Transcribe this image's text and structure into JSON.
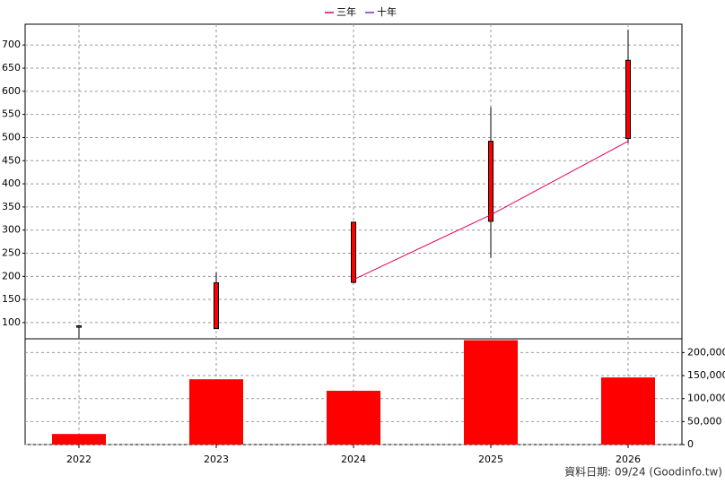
{
  "chart_data": {
    "type": "candlestick",
    "categories": [
      "2022",
      "2023",
      "2024",
      "2025",
      "2026"
    ],
    "open": [
      93,
      87,
      187,
      319,
      498
    ],
    "high": [
      95,
      209,
      318,
      566,
      733
    ],
    "low": [
      66,
      87,
      185,
      240,
      488
    ],
    "close": [
      90,
      186,
      317,
      492,
      667
    ],
    "up_color": "#ff0000",
    "down_color": "#00c000",
    "series": [
      {
        "name": "三年",
        "color": "#e0005a",
        "values": [
          null,
          null,
          193,
          333,
          492
        ]
      },
      {
        "name": "十年",
        "color": "#7030c0",
        "values": [
          null,
          null,
          null,
          null,
          null
        ]
      }
    ],
    "volume": [
      23000,
      142000,
      117000,
      227000,
      146000
    ],
    "volume_color": "#ff0000",
    "ylim": [
      65,
      745
    ],
    "yticks": [
      100,
      150,
      200,
      250,
      300,
      350,
      400,
      450,
      500,
      550,
      600,
      650,
      700
    ],
    "y2lim": [
      0,
      230000
    ],
    "y2ticks": [
      0,
      {
        "value": 50000,
        "label": "50,000"
      },
      {
        "value": 100000,
        "label": "100,000"
      },
      {
        "value": 150000,
        "label": "150,000"
      },
      {
        "value": 200000,
        "label": "200,000"
      }
    ],
    "grid": true,
    "footer": "資料日期: 09/24  (Goodinfo.tw)"
  }
}
